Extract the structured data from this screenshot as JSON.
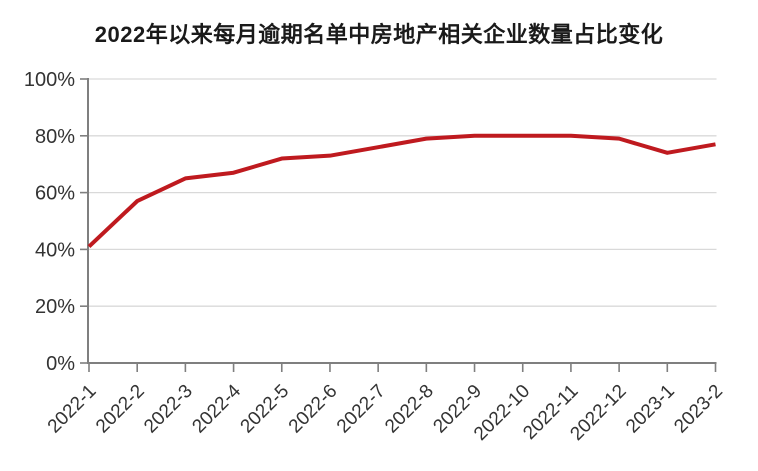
{
  "chart_data": {
    "type": "line",
    "title": "2022年以来每月逾期名单中房地产相关企业数量占比变化",
    "xlabel": "",
    "ylabel": "",
    "categories": [
      "2022-1",
      "2022-2",
      "2022-3",
      "2022-4",
      "2022-5",
      "2022-6",
      "2022-7",
      "2022-8",
      "2022-9",
      "2022-10",
      "2022-11",
      "2022-12",
      "2023-1",
      "2023-2"
    ],
    "series": [
      {
        "name": "",
        "values": [
          41,
          57,
          65,
          67,
          72,
          73,
          76,
          79,
          80,
          80,
          80,
          79,
          74,
          77
        ]
      }
    ],
    "unit": "%",
    "ylim": [
      0,
      100
    ],
    "y_ticks": [
      0,
      20,
      40,
      60,
      80,
      100
    ],
    "y_tick_labels": [
      "0%",
      "20%",
      "40%",
      "60%",
      "80%",
      "100%"
    ],
    "grid": "horizontal",
    "legend": "none",
    "colors": {
      "line": "#bf1a1f",
      "axis": "#7f7f7f",
      "gridline": "#d9d9d9",
      "tick_label": "#333333",
      "title": "#1a1a1a"
    }
  }
}
